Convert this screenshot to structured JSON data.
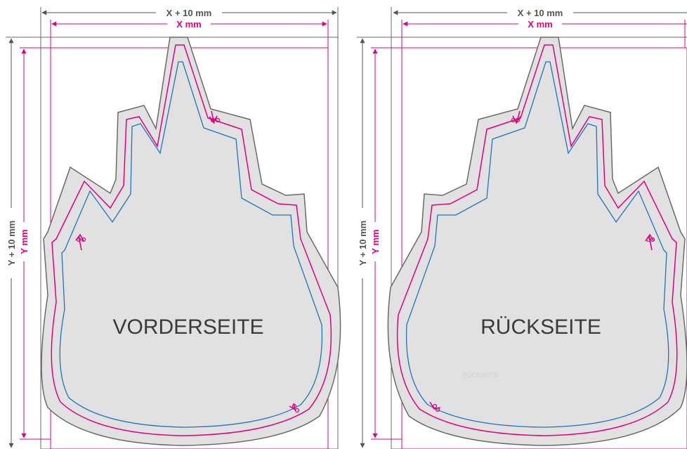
{
  "colors": {
    "outer_dimension": "#555555",
    "inner_dimension": "#e3007e",
    "cut_line": "#e3007e",
    "safe_line": "#1e73be",
    "bleed_fill": "#e1e1e1",
    "bleed_stroke": "#6a6a6a",
    "label_text": "#3a3a3a"
  },
  "dimensions": {
    "width_outer": "X + 10 mm",
    "width_inner": "X mm",
    "height_outer": "Y + 10 mm",
    "height_inner": "Y mm"
  },
  "panels": [
    {
      "label": "VORDERSEITE",
      "scissors_icon": "scissors-icon"
    },
    {
      "label": "RÜCKSEITE",
      "faint_label": "RÜCKSEITE",
      "scissors_icon": "scissors-icon"
    }
  ]
}
